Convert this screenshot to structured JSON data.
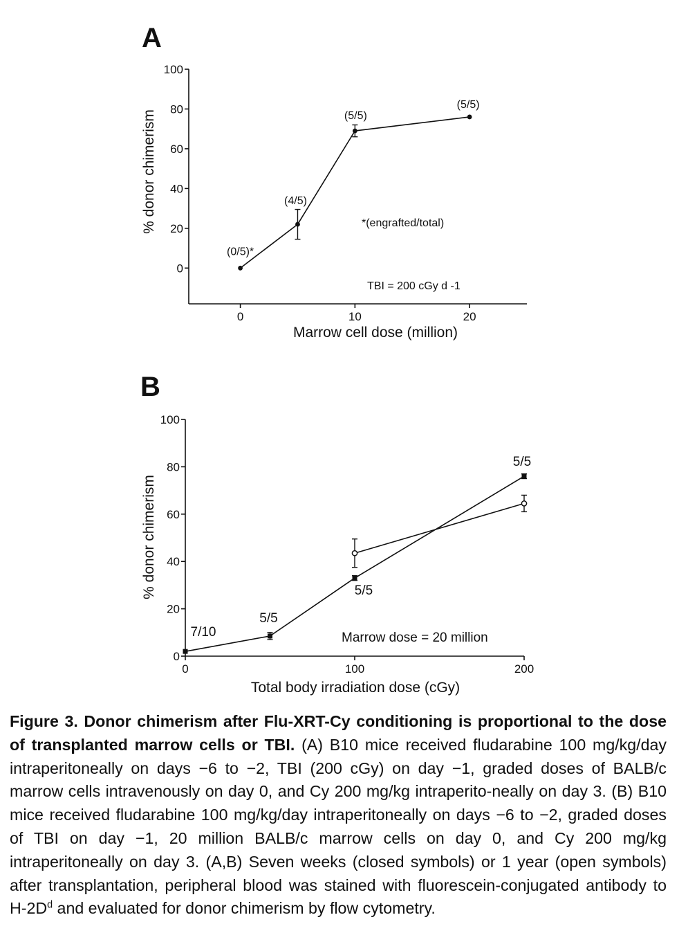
{
  "panels": [
    {
      "letter": "A",
      "chart_data": {
        "type": "line",
        "xlabel": "Marrow cell dose (million)",
        "ylabel": "% donor chimerism",
        "xlim": [
          -4.5,
          25
        ],
        "ylim": [
          -18,
          100
        ],
        "x_ticks": [
          0,
          10,
          20
        ],
        "y_ticks": [
          0,
          20,
          40,
          60,
          80,
          100
        ],
        "series": [
          {
            "marker": "filled",
            "points": [
              {
                "x": 0,
                "y": 0,
                "err": 0,
                "label": "(0/5)*"
              },
              {
                "x": 5,
                "y": 22,
                "err": 7.5,
                "label": "(4/5)"
              },
              {
                "x": 10,
                "y": 69,
                "err": 3,
                "label": "(5/5)"
              },
              {
                "x": 20,
                "y": 76,
                "err": 0,
                "label": "(5/5)"
              }
            ]
          }
        ],
        "annotations": [
          "*(engrafted/total)",
          "TBI = 200 cGy d -1"
        ],
        "grid": false
      }
    },
    {
      "letter": "B",
      "chart_data": {
        "type": "line",
        "xlabel": "Total body irradiation dose (cGy)",
        "ylabel": "% donor chimerism",
        "xlim": [
          0,
          200
        ],
        "ylim": [
          0,
          100
        ],
        "x_ticks": [
          0,
          100,
          200
        ],
        "y_ticks": [
          0,
          20,
          40,
          60,
          80,
          100
        ],
        "series": [
          {
            "marker": "filled",
            "points": [
              {
                "x": 0,
                "y": 2,
                "err": 0,
                "label": "7/10"
              },
              {
                "x": 50,
                "y": 8.5,
                "err": 1.5,
                "label": "5/5"
              },
              {
                "x": 100,
                "y": 33,
                "err": 1,
                "label": "5/5"
              },
              {
                "x": 200,
                "y": 76,
                "err": 1,
                "label": "5/5"
              }
            ]
          },
          {
            "marker": "open",
            "points": [
              {
                "x": 100,
                "y": 43.5,
                "err": 6
              },
              {
                "x": 200,
                "y": 64.5,
                "err": 3.5
              }
            ]
          }
        ],
        "annotations": [
          "Marrow dose = 20 million"
        ],
        "grid": false
      }
    }
  ],
  "caption": {
    "bold": "Figure 3. Donor chimerism after Flu-XRT-Cy conditioning is proportional to the dose of transplanted marrow cells or TBI.",
    "text_before_sup": " (A) B10 mice received fludarabine 100 mg/kg/day intraperitoneally on days −6 to −2, TBI (200 cGy) on day −1, graded doses of BALB/c marrow cells intravenously on day 0, and Cy 200 mg/kg intraperito-neally on day 3. (B) B10 mice received fludarabine 100 mg/kg/day intraperitoneally on days −6 to −2, graded doses of TBI on day −1, 20 million BALB/c marrow cells on day 0, and Cy 200 mg/kg intraperitoneally on day 3. (A,B) Seven weeks (closed symbols) or 1 year (open symbols) after transplantation, peripheral blood was stained with fluorescein-conjugated antibody to H-2D",
    "sup": "d",
    "text_after_sup": " and evaluated for donor chimerism by flow cytometry."
  }
}
